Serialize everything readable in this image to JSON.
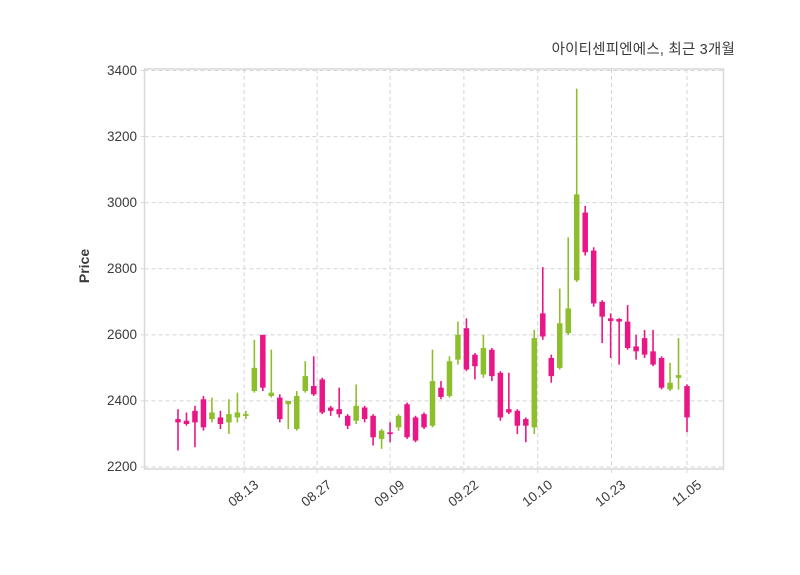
{
  "header": {
    "title": "아이티센피엔에스, 최근 3개월"
  },
  "chart_data": {
    "type": "candlestick",
    "title": "아이티센피엔에스, 최근 3개월",
    "xlabel": "",
    "ylabel": "Price",
    "ylim": [
      2200,
      3400
    ],
    "y_ticks": [
      2200,
      2400,
      2600,
      2800,
      3000,
      3200,
      3400
    ],
    "x_ticks": [
      {
        "label": "08.13",
        "pos": 7.8
      },
      {
        "label": "08.27",
        "pos": 16.4
      },
      {
        "label": "09.09",
        "pos": 25.0
      },
      {
        "label": "09.22",
        "pos": 33.7
      },
      {
        "label": "10.10",
        "pos": 42.4
      },
      {
        "label": "10.23",
        "pos": 51.1
      },
      {
        "label": "11.05",
        "pos": 60.0
      }
    ],
    "grid": "dashed-both-axes",
    "legend": "none",
    "colors": {
      "up": "#8dbe2b",
      "down": "#e91786",
      "grid": "#d4d4d4",
      "border": "#d9d9d9",
      "text": "#3b3b3b",
      "background": "#ffffff"
    },
    "candle_format": [
      "open",
      "high",
      "low",
      "close"
    ],
    "candles": [
      [
        2345,
        2375,
        2250,
        2335
      ],
      [
        2340,
        2365,
        2325,
        2330
      ],
      [
        2370,
        2385,
        2260,
        2335
      ],
      [
        2405,
        2415,
        2310,
        2320
      ],
      [
        2345,
        2410,
        2335,
        2365
      ],
      [
        2350,
        2370,
        2315,
        2330
      ],
      [
        2335,
        2405,
        2300,
        2360
      ],
      [
        2350,
        2425,
        2335,
        2365
      ],
      [
        2355,
        2370,
        2345,
        2360
      ],
      [
        2430,
        2585,
        2425,
        2500
      ],
      [
        2600,
        2600,
        2430,
        2440
      ],
      [
        2415,
        2555,
        2410,
        2425
      ],
      [
        2410,
        2420,
        2335,
        2345
      ],
      [
        2390,
        2400,
        2315,
        2400
      ],
      [
        2315,
        2430,
        2310,
        2415
      ],
      [
        2430,
        2520,
        2425,
        2475
      ],
      [
        2445,
        2535,
        2415,
        2420
      ],
      [
        2465,
        2470,
        2360,
        2365
      ],
      [
        2380,
        2385,
        2355,
        2370
      ],
      [
        2375,
        2440,
        2350,
        2360
      ],
      [
        2355,
        2360,
        2315,
        2325
      ],
      [
        2340,
        2450,
        2330,
        2385
      ],
      [
        2380,
        2385,
        2335,
        2345
      ],
      [
        2355,
        2360,
        2265,
        2290
      ],
      [
        2285,
        2315,
        2255,
        2310
      ],
      [
        2305,
        2335,
        2275,
        2300
      ],
      [
        2320,
        2360,
        2310,
        2355
      ],
      [
        2390,
        2395,
        2285,
        2290
      ],
      [
        2350,
        2355,
        2275,
        2280
      ],
      [
        2360,
        2365,
        2315,
        2320
      ],
      [
        2325,
        2555,
        2320,
        2460
      ],
      [
        2440,
        2460,
        2405,
        2412
      ],
      [
        2415,
        2535,
        2410,
        2520
      ],
      [
        2525,
        2640,
        2510,
        2600
      ],
      [
        2620,
        2650,
        2490,
        2495
      ],
      [
        2540,
        2545,
        2465,
        2505
      ],
      [
        2480,
        2600,
        2470,
        2560
      ],
      [
        2555,
        2560,
        2460,
        2475
      ],
      [
        2485,
        2490,
        2340,
        2350
      ],
      [
        2375,
        2485,
        2360,
        2365
      ],
      [
        2370,
        2375,
        2300,
        2325
      ],
      [
        2345,
        2350,
        2275,
        2325
      ],
      [
        2320,
        2615,
        2300,
        2590
      ],
      [
        2665,
        2805,
        2585,
        2595
      ],
      [
        2530,
        2540,
        2455,
        2475
      ],
      [
        2500,
        2740,
        2495,
        2635
      ],
      [
        2605,
        2895,
        2600,
        2680
      ],
      [
        2765,
        3345,
        2760,
        3025
      ],
      [
        2970,
        2990,
        2840,
        2850
      ],
      [
        2855,
        2865,
        2685,
        2695
      ],
      [
        2700,
        2705,
        2575,
        2655
      ],
      [
        2650,
        2665,
        2530,
        2642
      ],
      [
        2648,
        2650,
        2510,
        2640
      ],
      [
        2640,
        2690,
        2555,
        2560
      ],
      [
        2565,
        2600,
        2525,
        2550
      ],
      [
        2590,
        2615,
        2530,
        2540
      ],
      [
        2550,
        2615,
        2505,
        2510
      ],
      [
        2530,
        2535,
        2435,
        2440
      ],
      [
        2435,
        2515,
        2430,
        2455
      ],
      [
        2470,
        2590,
        2434,
        2478
      ],
      [
        2445,
        2450,
        2305,
        2350
      ]
    ]
  }
}
